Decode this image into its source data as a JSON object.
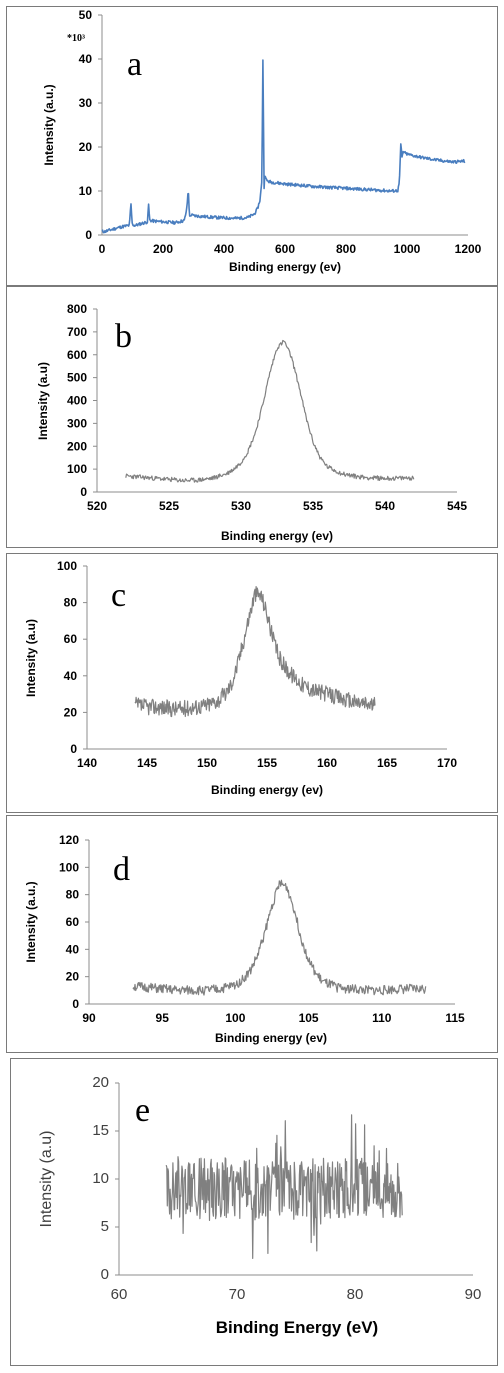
{
  "chart_data": [
    {
      "type": "line",
      "panel_letter": "a",
      "xlabel": "Binding energy (ev)",
      "ylabel": "Intensity (a.u.)",
      "y_multiplier": "*10³",
      "xlim": [
        0,
        1200
      ],
      "ylim": [
        0,
        50
      ],
      "xticks": [
        "0",
        "200",
        "400",
        "600",
        "800",
        "1000",
        "1200"
      ],
      "yticks": [
        "0",
        "10",
        "20",
        "30",
        "40",
        "50"
      ],
      "color": "#4a7ebf",
      "series": [
        {
          "x": [
            0,
            10,
            30,
            60,
            90,
            95,
            99,
            102,
            106,
            110,
            130,
            150,
            152,
            156,
            160,
            165,
            200,
            240,
            270,
            278,
            283,
            287,
            292,
            300,
            330,
            370,
            400,
            440,
            480,
            500,
            510,
            518,
            524,
            528,
            531,
            534,
            537,
            540,
            545,
            555,
            570,
            600,
            650,
            700,
            750,
            800,
            850,
            900,
            950,
            970,
            975,
            980,
            984,
            988,
            995,
            1010,
            1050,
            1100,
            1150,
            1190
          ],
          "y": [
            0.8,
            0.8,
            1.2,
            1.8,
            2.2,
            7.2,
            2.6,
            2.3,
            2.2,
            2.2,
            2.6,
            3.0,
            7.8,
            3.4,
            3.3,
            3.2,
            3.0,
            2.8,
            3.3,
            6.0,
            10.5,
            4.0,
            4.6,
            4.4,
            4.2,
            4.0,
            3.9,
            3.8,
            4.0,
            4.8,
            6.0,
            8.0,
            12.0,
            43.2,
            9.5,
            14.5,
            12.8,
            12.4,
            12.2,
            12.0,
            11.9,
            11.6,
            11.3,
            11.0,
            10.8,
            10.6,
            10.4,
            10.2,
            10.0,
            10.1,
            12.0,
            20.8,
            17.5,
            19.0,
            18.5,
            18.2,
            17.6,
            17.0,
            16.6,
            16.8
          ]
        }
      ]
    },
    {
      "type": "line",
      "panel_letter": "b",
      "xlabel": "Binding energy (ev)",
      "ylabel": "Intensity (a.u)",
      "xlim": [
        520,
        545
      ],
      "ylim": [
        0,
        800
      ],
      "xticks": [
        "520",
        "525",
        "530",
        "535",
        "540",
        "545"
      ],
      "yticks": [
        "0",
        "100",
        "200",
        "300",
        "400",
        "500",
        "600",
        "700",
        "800"
      ],
      "color": "#808080",
      "series": [
        {
          "x": [
            522,
            523,
            524,
            525,
            526,
            527,
            528,
            529,
            529.5,
            530,
            530.5,
            531,
            531.5,
            532,
            532.5,
            533,
            533.5,
            534,
            534.5,
            535,
            535.5,
            536,
            537,
            538,
            539,
            540,
            541,
            542
          ],
          "y": [
            70,
            65,
            60,
            55,
            50,
            52,
            60,
            80,
            100,
            130,
            180,
            260,
            380,
            520,
            630,
            660,
            590,
            470,
            330,
            220,
            150,
            110,
            80,
            68,
            62,
            60,
            60,
            62
          ]
        }
      ]
    },
    {
      "type": "line",
      "panel_letter": "c",
      "xlabel": "Binding energy (ev)",
      "ylabel": "Intensity (a.u)",
      "xlim": [
        140,
        170
      ],
      "ylim": [
        0,
        100
      ],
      "xticks": [
        "140",
        "145",
        "150",
        "155",
        "160",
        "165",
        "170"
      ],
      "yticks": [
        "0",
        "20",
        "40",
        "60",
        "80",
        "100"
      ],
      "color": "#808080",
      "series": [
        {
          "x": [
            144,
            145,
            146,
            147,
            148,
            149,
            150,
            151,
            151.5,
            152,
            152.5,
            153,
            153.5,
            154,
            154.5,
            155,
            155.5,
            156,
            156.5,
            157,
            158,
            159,
            160,
            161,
            162,
            163,
            164
          ],
          "y": [
            24,
            23,
            23,
            22,
            22,
            23,
            24,
            27,
            30,
            35,
            45,
            58,
            72,
            85,
            84,
            74,
            60,
            50,
            45,
            41,
            35,
            32,
            30,
            28,
            26,
            25,
            24
          ]
        }
      ]
    },
    {
      "type": "line",
      "panel_letter": "d",
      "xlabel": "Binding energy (ev)",
      "ylabel": "Intensity (a.u.)",
      "xlim": [
        90,
        115
      ],
      "ylim": [
        0,
        120
      ],
      "xticks": [
        "90",
        "95",
        "100",
        "105",
        "110",
        "115"
      ],
      "yticks": [
        "0",
        "20",
        "40",
        "60",
        "80",
        "100",
        "120"
      ],
      "color": "#808080",
      "series": [
        {
          "x": [
            93,
            94,
            95,
            96,
            97,
            98,
            99,
            100,
            100.5,
            101,
            101.5,
            102,
            102.5,
            103,
            103.5,
            104,
            104.5,
            105,
            105.5,
            106,
            107,
            108,
            109,
            110,
            111,
            112,
            113
          ],
          "y": [
            13,
            12,
            11,
            10,
            10,
            10,
            11,
            14,
            18,
            24,
            35,
            52,
            72,
            88,
            86,
            70,
            48,
            32,
            22,
            16,
            12,
            11,
            10,
            10,
            11,
            11,
            11
          ]
        }
      ]
    },
    {
      "type": "line",
      "panel_letter": "e",
      "xlabel": "Binding Energy (eV)",
      "ylabel": "Intensity (a.u)",
      "xlim": [
        60,
        90
      ],
      "ylim": [
        0,
        20
      ],
      "xticks": [
        "60",
        "70",
        "80",
        "90"
      ],
      "yticks": [
        "0",
        "5",
        "10",
        "15",
        "20"
      ],
      "color": "#808080",
      "series": [
        {
          "x": [
            64,
            84
          ],
          "y": [
            9,
            9
          ]
        }
      ]
    }
  ]
}
